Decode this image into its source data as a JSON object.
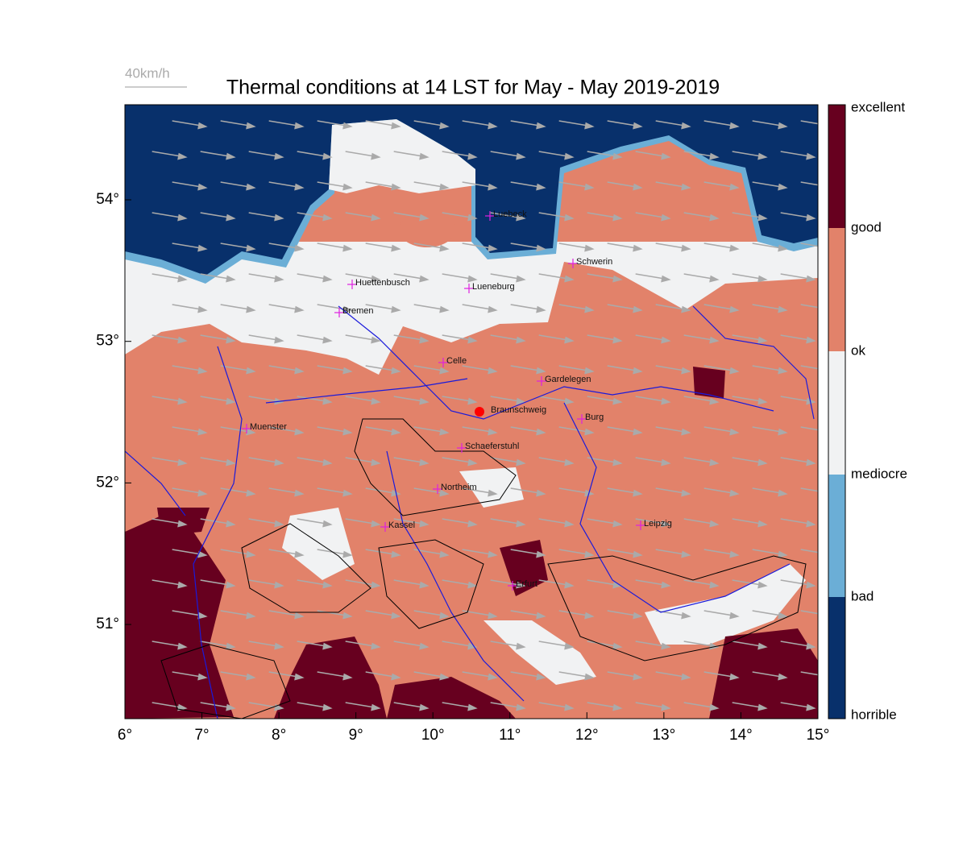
{
  "title": "Thermal conditions at 14 LST for May - May  2019-2019",
  "wind_scale": "40km/h",
  "x_axis": {
    "ticks": [
      "6°",
      "7°",
      "8°",
      "9°",
      "10°",
      "11°",
      "12°",
      "13°",
      "14°",
      "15°"
    ]
  },
  "y_axis": {
    "ticks": [
      "54°",
      "53°",
      "52°",
      "51°"
    ]
  },
  "cities": [
    "Luebeck",
    "Huettenbusch",
    "Lueneburg",
    "Schwerin",
    "Bremen",
    "Celle",
    "Gardelegen",
    "Braunschweig",
    "Burg",
    "Muenster",
    "Schaeferstuhl",
    "Northeim",
    "Kassel",
    "Leipzig",
    "Erfurt"
  ],
  "colorbar": {
    "labels": [
      "excellent",
      "good",
      "ok",
      "mediocre",
      "bad",
      "horrible"
    ]
  }
}
